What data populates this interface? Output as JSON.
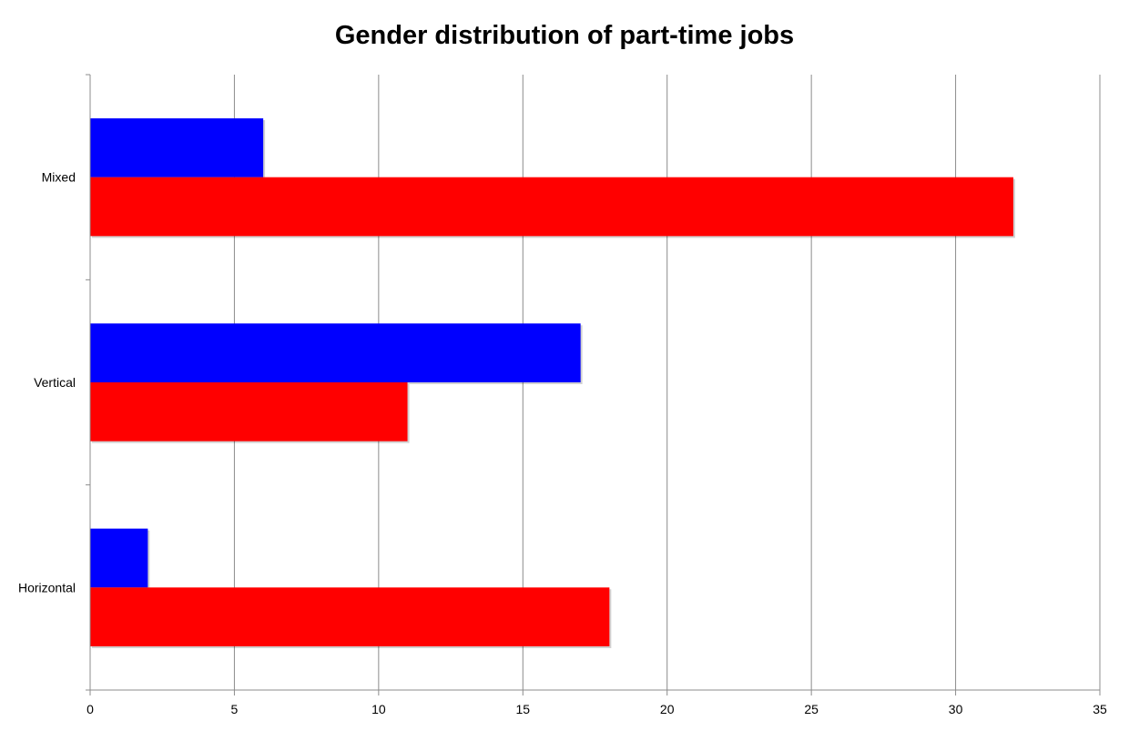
{
  "chart_data": {
    "type": "bar",
    "orientation": "horizontal",
    "title": "Gender distribution of part-time jobs",
    "xlabel": "",
    "ylabel": "",
    "categories": [
      "Mixed",
      "Vertical",
      "Horizontal"
    ],
    "series": [
      {
        "color": "#0000ff",
        "values": [
          6,
          17,
          2
        ]
      },
      {
        "color": "#ff0000",
        "values": [
          32,
          11,
          18
        ]
      }
    ],
    "xlim": [
      0,
      35
    ],
    "xticks": [
      0,
      5,
      10,
      15,
      20,
      25,
      30,
      35
    ],
    "grid": "vertical",
    "legend": "none"
  }
}
